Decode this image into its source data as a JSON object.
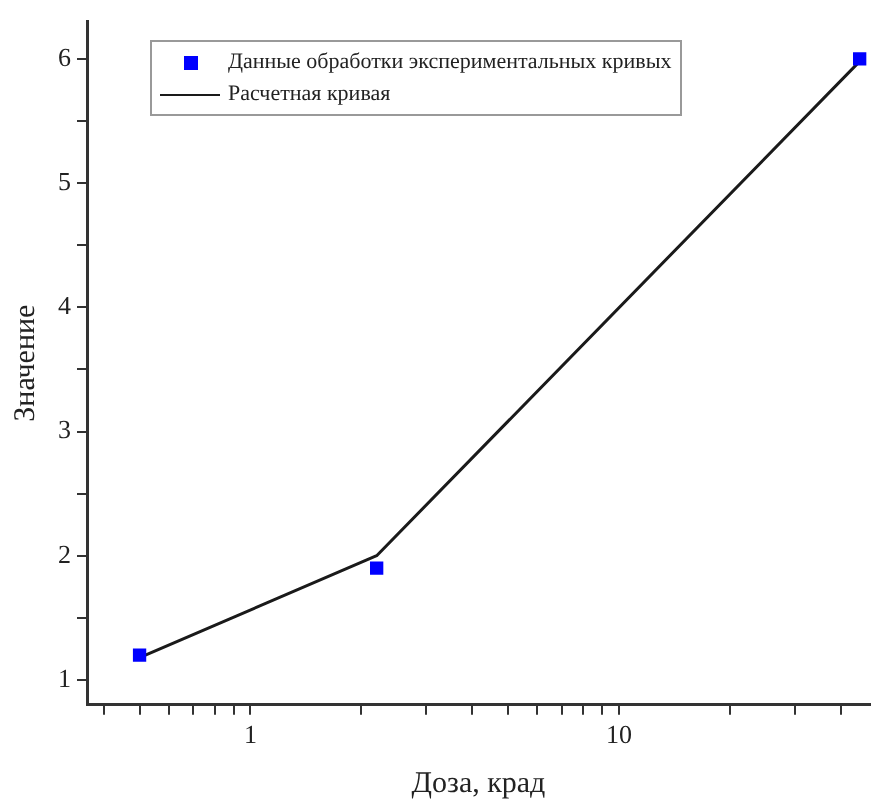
{
  "chart_data": {
    "type": "scatter",
    "xlabel": "Доза, крад",
    "ylabel": "Значение",
    "log": "x",
    "xlim": [
      0.36,
      48
    ],
    "ylim": [
      0.8,
      6.3
    ],
    "xticks": [
      {
        "value": 0.4,
        "label": null
      },
      {
        "value": 0.5,
        "label": null
      },
      {
        "value": 0.6,
        "label": null
      },
      {
        "value": 0.7,
        "label": null
      },
      {
        "value": 0.8,
        "label": null
      },
      {
        "value": 0.9,
        "label": null
      },
      1,
      {
        "value": 2,
        "label": null
      },
      {
        "value": 3,
        "label": null
      },
      {
        "value": 4,
        "label": null
      },
      {
        "value": 5,
        "label": null
      },
      {
        "value": 6,
        "label": null
      },
      {
        "value": 7,
        "label": null
      },
      {
        "value": 8,
        "label": null
      },
      {
        "value": 9,
        "label": null
      },
      10,
      {
        "value": 20,
        "label": null
      },
      {
        "value": 30,
        "label": null
      },
      {
        "value": 40,
        "label": null
      }
    ],
    "yticks": [
      1,
      {
        "value": 1.5,
        "label": null
      },
      2,
      {
        "value": 2.5,
        "label": null
      },
      3,
      {
        "value": 3.5,
        "label": null
      },
      4,
      {
        "value": 4.5,
        "label": null
      },
      5,
      {
        "value": 5.5,
        "label": null
      },
      6
    ],
    "grid": false,
    "legend": "top left",
    "series": [
      {
        "name": "Данные обработки экспериментальных кривых",
        "type": "scatter",
        "marker": "square",
        "color": "#0000ff",
        "x": [
          0.5,
          2.2,
          45
        ],
        "values": [
          1.2,
          1.9,
          6.0
        ]
      },
      {
        "name": "Расчетная кривая",
        "type": "line",
        "marker": "none",
        "line_style": "solid",
        "color": "#1a1a1a",
        "x": [
          0.5,
          2.2,
          45
        ],
        "values": [
          1.18,
          2.0,
          5.98
        ]
      }
    ]
  }
}
